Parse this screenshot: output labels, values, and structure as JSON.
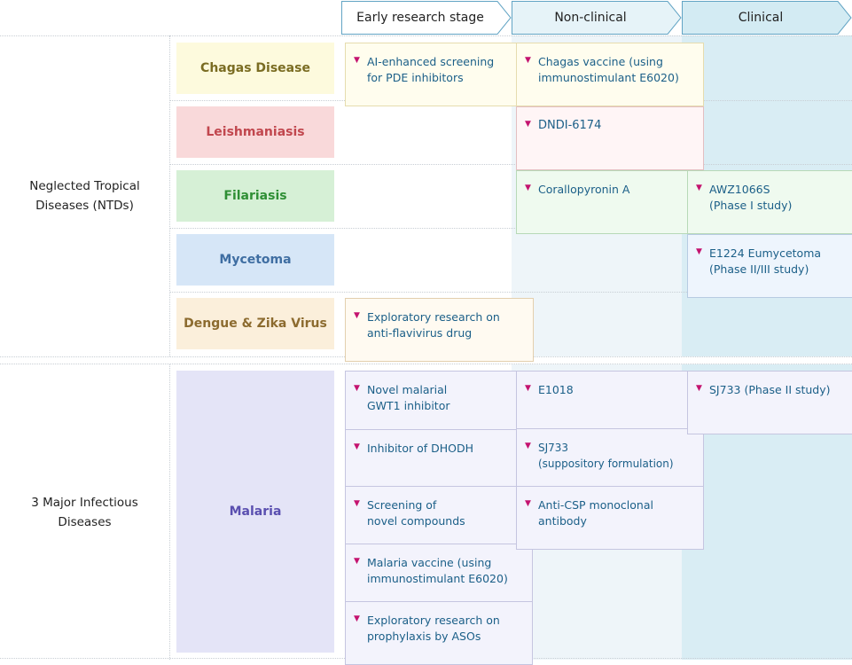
{
  "phases": [
    "Early research stage",
    "Non-clinical",
    "Clinical"
  ],
  "groups": {
    "ntd": "Neglected Tropical\nDiseases (NTDs)",
    "major": "3 Major Infectious\nDiseases"
  },
  "diseases": {
    "chagas": "Chagas Disease",
    "leish": "Leishmaniasis",
    "filar": "Filariasis",
    "myce": "Mycetoma",
    "dengue": "Dengue & Zika Virus",
    "malaria": "Malaria"
  },
  "colors": {
    "chagas": {
      "bg": "#fdfadd",
      "fg": "#7a6c22"
    },
    "leish": {
      "bg": "#f9d9da",
      "fg": "#c1474e"
    },
    "filar": {
      "bg": "#d6f0d6",
      "fg": "#2f8f35"
    },
    "myce": {
      "bg": "#d6e6f7",
      "fg": "#3f6ea2"
    },
    "dengue": {
      "bg": "#fbefdb",
      "fg": "#8c6b2f"
    },
    "malaria": {
      "bg": "#e4e4f7",
      "fg": "#5a4fb0"
    },
    "marker": "#c4136f",
    "card_text": "#1b5f88"
  },
  "cards": {
    "chagas_early": "AI-enhanced screening\nfor PDE inhibitors",
    "chagas_nc": "Chagas vaccine (using\nimmunostimulant E6020)",
    "leish_nc": "DNDI-6174",
    "filar_nc": "Corallopyronin A",
    "filar_cl": "AWZ1066S\n(Phase I study)",
    "myce_cl": "E1224 Eumycetoma\n(Phase II/III study)",
    "dengue_early": "Exploratory research on\nanti-flavivirus drug",
    "mal_e1": "Novel malarial\nGWT1 inhibitor",
    "mal_e2": "Inhibitor of DHODH",
    "mal_e3": "Screening of\nnovel compounds",
    "mal_e4": "Malaria vaccine (using\nimmunostimulant E6020)",
    "mal_e5": "Exploratory research on\nprophylaxis by ASOs",
    "mal_n1": "E1018",
    "mal_n2": "SJ733\n(suppository formulation)",
    "mal_n3": "Anti-CSP monoclonal\nantibody",
    "mal_c1": "SJ733 (Phase II study)"
  }
}
